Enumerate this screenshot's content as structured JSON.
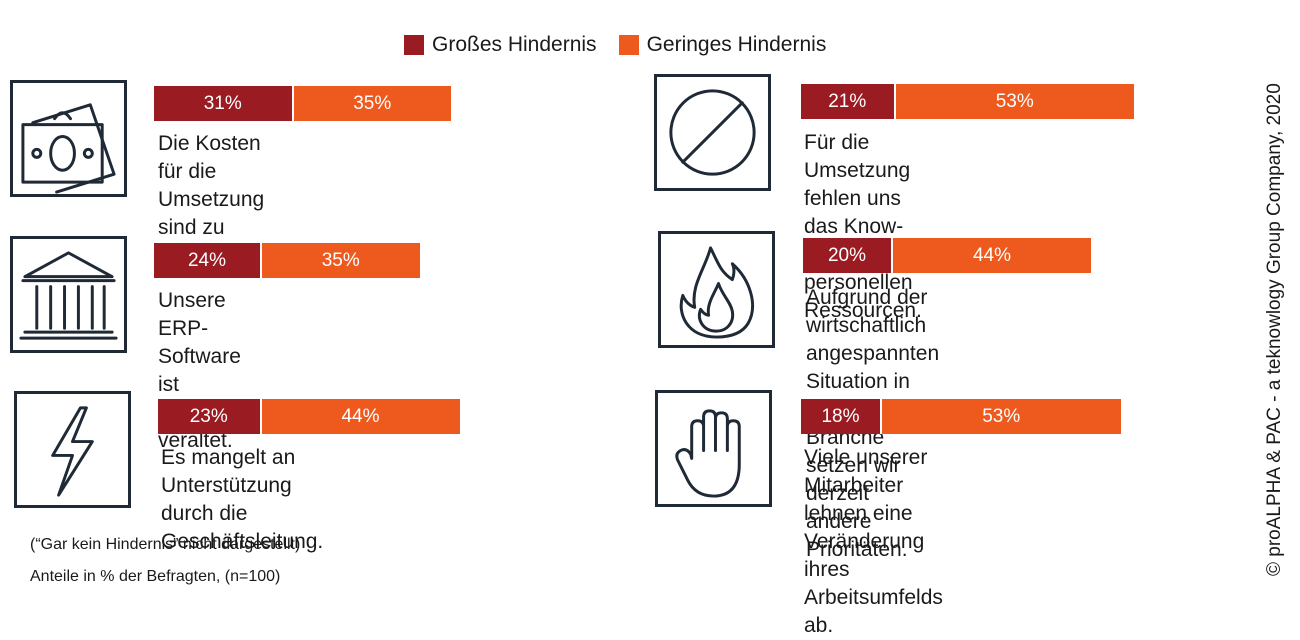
{
  "legend": {
    "big_label": "Großes Hindernis",
    "small_label": "Geringes Hindernis"
  },
  "colors": {
    "big": "#9b1b22",
    "small": "#ee5a1e",
    "icon_stroke": "#1f2a36"
  },
  "chart_data": {
    "type": "bar",
    "stacked": true,
    "orientation": "horizontal",
    "categories": [
      "Die Kosten für die Umsetzung sind zu\nhoch.",
      "Unsere ERP-Software ist technisch\nveraltet.",
      "Es mangelt an Unterstützung durch die\nGeschäftsleitung.",
      "Für die Umsetzung fehlen uns das Know-\nhow und die personellen Ressourcen.",
      "Aufgrund der wirtschaftlich angespannten\nSituation in unserer Branche setzen wir\nderzeit andere Prioritäten.",
      "Viele unserer Mitarbeiter lehnen eine\nVeränderung ihres Arbeitsumfelds ab."
    ],
    "series": [
      {
        "name": "Großes Hindernis",
        "values": [
          31,
          24,
          23,
          21,
          20,
          18
        ],
        "labels": [
          "31%",
          "24%",
          "23%",
          "21%",
          "20%",
          "18%"
        ]
      },
      {
        "name": "Geringes Hindernis",
        "values": [
          35,
          35,
          44,
          53,
          44,
          53
        ],
        "labels": [
          "35%",
          "35%",
          "44%",
          "53%",
          "44%",
          "53%"
        ]
      }
    ],
    "icons": [
      "money-icon",
      "bank-icon",
      "lightning-icon",
      "prohibited-icon",
      "fire-icon",
      "stop-hand-icon"
    ],
    "unit": "%",
    "grid": false,
    "legend_position": "top-center"
  },
  "notes": {
    "line1": "(“Gar kein Hindernis” nicht dargestellt)",
    "line2": "Anteile in % der Befragten, (n=100)"
  },
  "credit": "© proALPHA & PAC - a teknowlogy Group Company, 2020"
}
